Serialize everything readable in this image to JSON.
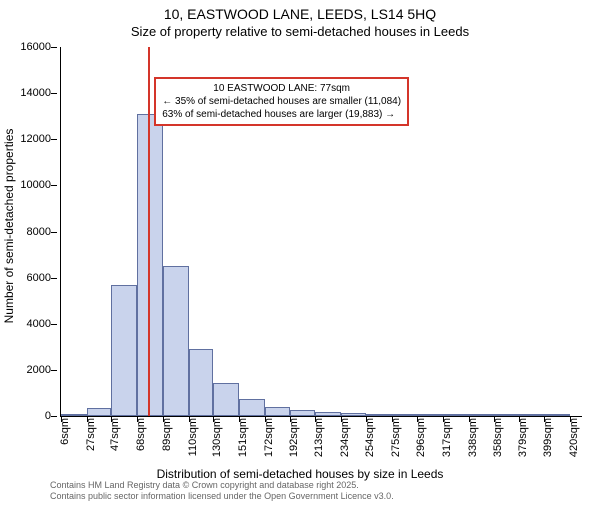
{
  "title_line1": "10, EASTWOOD LANE, LEEDS, LS14 5HQ",
  "title_line2": "Size of property relative to semi-detached houses in Leeds",
  "ylabel": "Number of semi-detached properties",
  "xlabel": "Distribution of semi-detached houses by size in Leeds",
  "chart": {
    "type": "histogram",
    "x_min": 6,
    "x_max": 430,
    "y_min": 0,
    "y_max": 16000,
    "ytick_step": 2000,
    "yticks": [
      0,
      2000,
      4000,
      6000,
      8000,
      10000,
      12000,
      14000,
      16000
    ],
    "xticks": [
      6,
      27,
      47,
      68,
      89,
      110,
      130,
      151,
      172,
      192,
      213,
      234,
      254,
      275,
      296,
      317,
      338,
      358,
      379,
      399,
      420
    ],
    "xtick_suffix": "sqm",
    "bar_fill": "#c9d3ec",
    "bar_border": "#6070a0",
    "ref_line_color": "#d4352a",
    "ref_line_x": 77,
    "annotation_border": "#d4352a",
    "axis_color": "#000000",
    "background_color": "#ffffff",
    "bars": [
      {
        "x0": 6,
        "x1": 27,
        "y": 50
      },
      {
        "x0": 27,
        "x1": 47,
        "y": 350
      },
      {
        "x0": 47,
        "x1": 68,
        "y": 5700
      },
      {
        "x0": 68,
        "x1": 89,
        "y": 13100
      },
      {
        "x0": 89,
        "x1": 110,
        "y": 6500
      },
      {
        "x0": 110,
        "x1": 130,
        "y": 2900
      },
      {
        "x0": 130,
        "x1": 151,
        "y": 1450
      },
      {
        "x0": 151,
        "x1": 172,
        "y": 750
      },
      {
        "x0": 172,
        "x1": 192,
        "y": 400
      },
      {
        "x0": 192,
        "x1": 213,
        "y": 280
      },
      {
        "x0": 213,
        "x1": 234,
        "y": 180
      },
      {
        "x0": 234,
        "x1": 254,
        "y": 120
      },
      {
        "x0": 254,
        "x1": 275,
        "y": 80
      },
      {
        "x0": 275,
        "x1": 296,
        "y": 30
      },
      {
        "x0": 296,
        "x1": 317,
        "y": 20
      },
      {
        "x0": 317,
        "x1": 338,
        "y": 15
      },
      {
        "x0": 338,
        "x1": 358,
        "y": 10
      },
      {
        "x0": 358,
        "x1": 379,
        "y": 8
      },
      {
        "x0": 379,
        "x1": 399,
        "y": 5
      },
      {
        "x0": 399,
        "x1": 420,
        "y": 5
      }
    ]
  },
  "annotation": {
    "line1": "10 EASTWOOD LANE: 77sqm",
    "line2": "← 35% of semi-detached houses are smaller (11,084)",
    "line3": "63% of semi-detached houses are larger (19,883) →"
  },
  "footer_line1": "Contains HM Land Registry data © Crown copyright and database right 2025.",
  "footer_line2": "Contains public sector information licensed under the Open Government Licence v3.0."
}
